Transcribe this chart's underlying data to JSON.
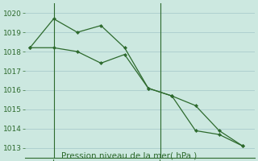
{
  "line1_x": [
    0,
    1,
    2,
    3,
    4,
    5,
    6,
    7,
    8,
    9
  ],
  "line1_y": [
    1018.2,
    1019.7,
    1019.0,
    1019.35,
    1018.2,
    1016.1,
    1015.7,
    1015.2,
    1013.9,
    1013.1
  ],
  "line2_x": [
    0,
    1,
    2,
    3,
    4,
    5,
    6,
    7,
    8,
    9
  ],
  "line2_y": [
    1018.2,
    1018.2,
    1018.0,
    1017.4,
    1017.85,
    1016.1,
    1015.7,
    1013.9,
    1013.7,
    1013.1
  ],
  "line_color": "#2d6a2d",
  "bg_color": "#cce8e0",
  "grid_color": "#aacccc",
  "ylim": [
    1012.5,
    1020.5
  ],
  "yticks": [
    1013,
    1014,
    1015,
    1016,
    1017,
    1018,
    1019,
    1020
  ],
  "ven_x": 1.0,
  "sam_x": 5.5,
  "xlabel": "Pression niveau de la mer( hPa )",
  "tick_fontsize": 6.5,
  "label_fontsize": 7.5,
  "xlim": [
    -0.2,
    9.5
  ]
}
